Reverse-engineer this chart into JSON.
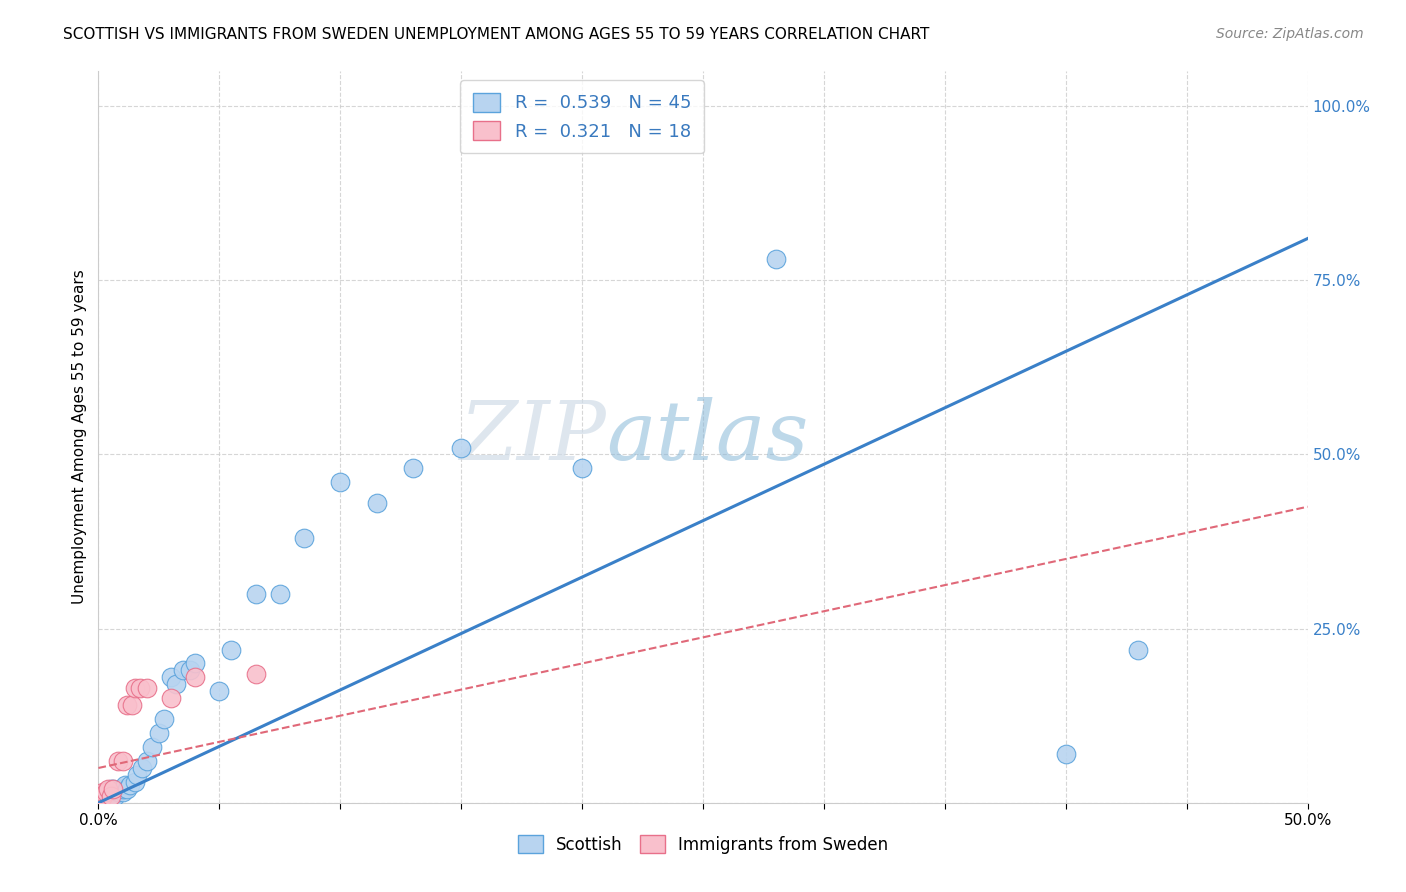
{
  "title": "SCOTTISH VS IMMIGRANTS FROM SWEDEN UNEMPLOYMENT AMONG AGES 55 TO 59 YEARS CORRELATION CHART",
  "source": "Source: ZipAtlas.com",
  "ylabel": "Unemployment Among Ages 55 to 59 years",
  "xlim": [
    0.0,
    0.5
  ],
  "ylim": [
    0.0,
    1.05
  ],
  "xticks": [
    0.0,
    0.05,
    0.1,
    0.15,
    0.2,
    0.25,
    0.3,
    0.35,
    0.4,
    0.45,
    0.5
  ],
  "xticklabels": [
    "0.0%",
    "",
    "",
    "",
    "",
    "",
    "",
    "",
    "",
    "",
    "50.0%"
  ],
  "yticks": [
    0.0,
    0.25,
    0.5,
    0.75,
    1.0
  ],
  "yticklabels": [
    "",
    "25.0%",
    "50.0%",
    "75.0%",
    "100.0%"
  ],
  "scottish_color": "#b8d4f0",
  "swedish_color": "#f9c0cc",
  "scottish_edge_color": "#5ba3dc",
  "swedish_edge_color": "#e8708a",
  "scottish_line_color": "#3a80c8",
  "swedish_line_color": "#e06878",
  "watermark_color": "#c5d8ee",
  "legend_R_scottish": "0.539",
  "legend_N_scottish": "45",
  "legend_R_swedish": "0.321",
  "legend_N_swedish": "18",
  "scottish_slope": 1.62,
  "scottish_intercept": 0.0,
  "swedish_slope": 0.75,
  "swedish_intercept": 0.05,
  "scottish_x": [
    0.001,
    0.001,
    0.002,
    0.002,
    0.003,
    0.003,
    0.004,
    0.004,
    0.005,
    0.005,
    0.006,
    0.006,
    0.007,
    0.008,
    0.009,
    0.01,
    0.01,
    0.011,
    0.012,
    0.013,
    0.015,
    0.016,
    0.018,
    0.02,
    0.022,
    0.025,
    0.027,
    0.03,
    0.032,
    0.035,
    0.038,
    0.04,
    0.05,
    0.055,
    0.065,
    0.075,
    0.085,
    0.1,
    0.115,
    0.13,
    0.15,
    0.2,
    0.28,
    0.4,
    0.43
  ],
  "scottish_y": [
    0.005,
    0.01,
    0.005,
    0.01,
    0.005,
    0.015,
    0.01,
    0.015,
    0.005,
    0.02,
    0.01,
    0.02,
    0.01,
    0.015,
    0.02,
    0.015,
    0.02,
    0.025,
    0.02,
    0.025,
    0.03,
    0.04,
    0.05,
    0.06,
    0.08,
    0.1,
    0.12,
    0.18,
    0.17,
    0.19,
    0.19,
    0.2,
    0.16,
    0.22,
    0.3,
    0.3,
    0.38,
    0.46,
    0.43,
    0.48,
    0.51,
    0.48,
    0.78,
    0.07,
    0.22
  ],
  "swedish_x": [
    0.001,
    0.001,
    0.002,
    0.002,
    0.003,
    0.004,
    0.005,
    0.006,
    0.008,
    0.01,
    0.012,
    0.014,
    0.015,
    0.017,
    0.02,
    0.03,
    0.04,
    0.065
  ],
  "swedish_y": [
    0.005,
    0.01,
    0.01,
    0.015,
    0.015,
    0.02,
    0.01,
    0.02,
    0.06,
    0.06,
    0.14,
    0.14,
    0.165,
    0.165,
    0.165,
    0.15,
    0.18,
    0.185
  ]
}
